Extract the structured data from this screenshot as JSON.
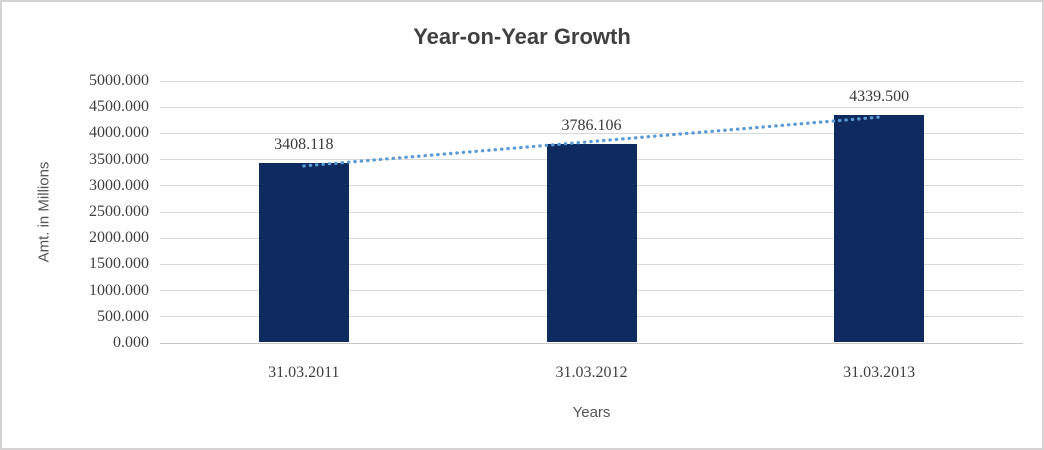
{
  "chart_data": {
    "type": "bar",
    "title": "Year-on-Year Growth",
    "xlabel": "Years",
    "ylabel": "Amt. in Millions",
    "categories": [
      "31.03.2011",
      "31.03.2012",
      "31.03.2013"
    ],
    "values": [
      3408.118,
      3786.106,
      4339.5
    ],
    "value_decimals": 3,
    "ylim": [
      0,
      5000
    ],
    "ytick_step": 500,
    "ytick_decimals": 3,
    "grid": "horizontal",
    "legend": "none",
    "trendline": {
      "type": "linear",
      "style": "dotted"
    },
    "colors": {
      "bar": "#0e2a5e",
      "trendline": "#5b9bd5",
      "gridline": "#d9d9d9",
      "title_text": "#404040",
      "tick_text": "#3f3f3f",
      "axis_title_text": "#555555",
      "frame_border": "#d4d2d2"
    }
  }
}
